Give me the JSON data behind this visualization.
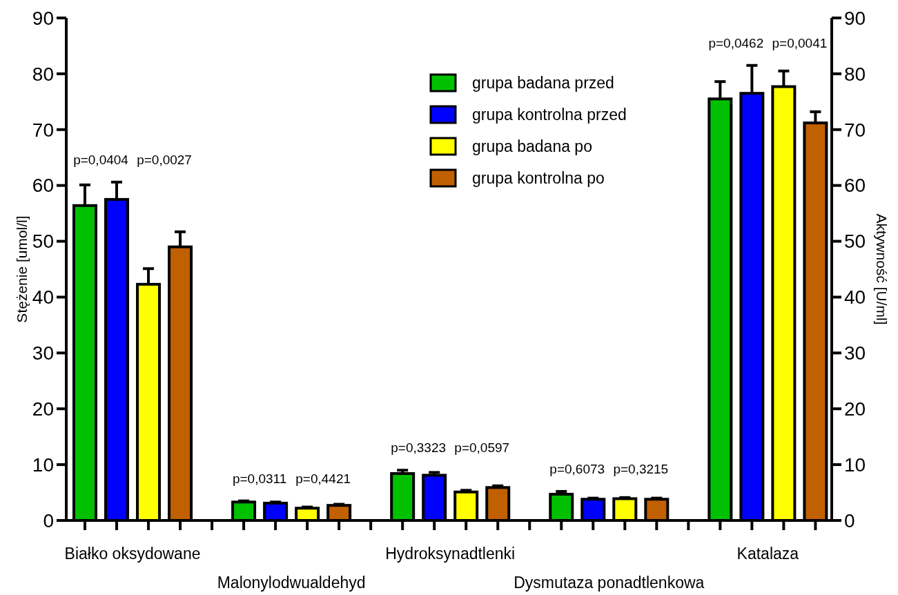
{
  "chart_data": {
    "type": "bar",
    "categories": [
      "Białko oksydowane",
      "Malonylodwualdehyd",
      "Hydroksynadtlenki",
      "Dysmutaza ponadtlenkowa",
      "Katalaza"
    ],
    "ylabel": "Stężenie [umol/l]",
    "y2label": "Aktywność [U/ml]",
    "ylim": [
      0,
      90
    ],
    "yticks": [
      0,
      10,
      20,
      30,
      40,
      50,
      60,
      70,
      80,
      90
    ],
    "y2lim": [
      0,
      90
    ],
    "y2ticks": [
      0,
      10,
      20,
      30,
      40,
      50,
      60,
      70,
      80,
      90
    ],
    "series": [
      {
        "name": "grupa badana przed",
        "color": "#00c000",
        "values": [
          56.4,
          3.3,
          8.4,
          4.7,
          75.5
        ],
        "errors": [
          3.7,
          0.2,
          0.6,
          0.5,
          3.1
        ]
      },
      {
        "name": "grupa kontrolna przed",
        "color": "#0000ff",
        "values": [
          57.5,
          3.1,
          8.1,
          3.8,
          76.5
        ],
        "errors": [
          3.1,
          0.2,
          0.5,
          0.2,
          5.0
        ]
      },
      {
        "name": "grupa badana po",
        "color": "#ffff00",
        "values": [
          42.3,
          2.2,
          5.1,
          3.9,
          77.7
        ],
        "errors": [
          2.8,
          0.2,
          0.3,
          0.2,
          2.8
        ]
      },
      {
        "name": "grupa kontrolna po",
        "color": "#c06000",
        "values": [
          49.0,
          2.7,
          5.9,
          3.8,
          71.2
        ],
        "errors": [
          2.7,
          0.2,
          0.3,
          0.2,
          2.0
        ]
      }
    ],
    "annotations": [
      "p=0,0404",
      "p=0,0027",
      "p=0,0311",
      "p=0,4421",
      "p=0,3323",
      "p=0,0597",
      "p=0,6073",
      "p=0,3215",
      "p=0,0462",
      "p=0,0041"
    ],
    "legend": "top",
    "grid": false
  }
}
